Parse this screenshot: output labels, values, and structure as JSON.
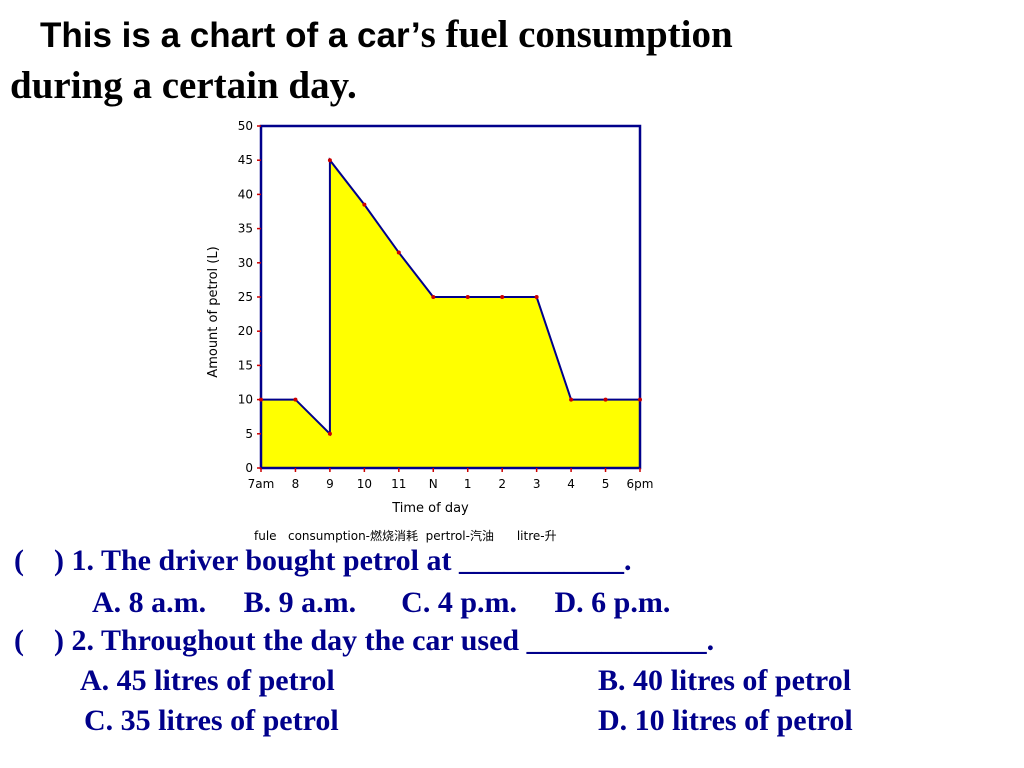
{
  "title": {
    "part1_sans": "This is a chart of a car’",
    "part1_serif": "s fuel consumption",
    "line2": "during a certain day."
  },
  "chart_data": {
    "type": "area",
    "x": [
      "7am",
      "8",
      "9",
      "9",
      "10",
      "11",
      "N",
      "1",
      "2",
      "3",
      "4",
      "5",
      "6pm"
    ],
    "values": [
      10,
      10,
      5,
      45,
      38.5,
      31.5,
      25,
      25,
      25,
      25,
      10,
      10,
      10
    ],
    "categories": [
      "7am",
      "8",
      "9",
      "10",
      "11",
      "N",
      "1",
      "2",
      "3",
      "4",
      "5",
      "6pm"
    ],
    "yticks": [
      0,
      5,
      10,
      15,
      20,
      25,
      30,
      35,
      40,
      45,
      50
    ],
    "ylim": [
      0,
      50
    ],
    "xlabel": "Time   of   day",
    "ylabel": "Amount   of     petrol (L)",
    "fill_color": "#ffff00",
    "line_color": "#00008b",
    "point_color": "#cc0000",
    "caption": "fule   consumption-燃烧消耗  pertrol-汽油      litre-升"
  },
  "questions": {
    "q1": "(    ) 1. The driver bought petrol at ___________.",
    "q1_options": "A. 8 a.m.     B. 9 a.m.      C. 4 p.m.     D. 6 p.m.",
    "q2": "(    ) 2. Throughout the day the car used ____________.",
    "q2_option_a": "A. 45 litres of petrol",
    "q2_option_b": "B. 40 litres of petrol",
    "q2_option_c": "C. 35 litres of petrol",
    "q2_option_d": "D. 10 litres of petrol"
  }
}
